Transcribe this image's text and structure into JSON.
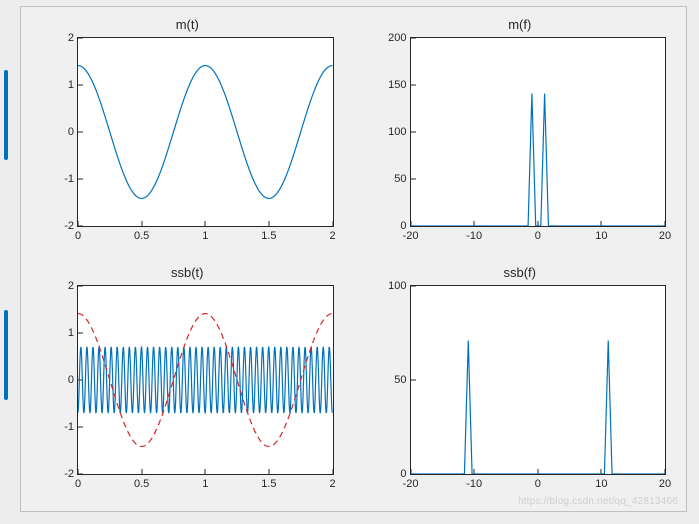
{
  "figure": {
    "background_color": "#f0f0f0",
    "panel_background": "#ffffff",
    "axis_color": "#262626",
    "tick_fontsize": 11,
    "title_fontsize": 13,
    "title_color": "#262626",
    "line_color_primary": "#0072bd",
    "line_color_secondary": "#d62728",
    "secondary_dash": "6,4",
    "line_width": 1.2
  },
  "panels": [
    {
      "id": "mt",
      "title": "m(t)",
      "xlim": [
        0,
        2
      ],
      "ylim": [
        -2,
        2
      ],
      "xticks": [
        0,
        0.5,
        1,
        1.5,
        2
      ],
      "yticks": [
        -2,
        -1,
        0,
        1,
        2
      ],
      "series": [
        {
          "kind": "sine",
          "amp": 1.414,
          "freq_hz": 1.0,
          "phase_deg": 90,
          "color_ref": "line_color_primary",
          "dash": null
        }
      ]
    },
    {
      "id": "mf",
      "title": "m(f)",
      "xlim": [
        -20,
        20
      ],
      "ylim": [
        0,
        200
      ],
      "xticks": [
        -20,
        -10,
        0,
        10,
        20
      ],
      "yticks": [
        0,
        50,
        100,
        150,
        200
      ],
      "series": [
        {
          "kind": "spikes",
          "baseline": 0,
          "spikes": [
            {
              "x": -1.0,
              "y": 141,
              "half_width": 0.6
            },
            {
              "x": 1.0,
              "y": 141,
              "half_width": 0.6
            }
          ],
          "color_ref": "line_color_primary",
          "dash": null
        }
      ]
    },
    {
      "id": "ssbt",
      "title": "ssb(t)",
      "xlim": [
        0,
        2
      ],
      "ylim": [
        -2,
        2
      ],
      "xticks": [
        0,
        0.5,
        1,
        1.5,
        2
      ],
      "yticks": [
        -2,
        -1,
        0,
        1,
        2
      ],
      "series": [
        {
          "kind": "sine",
          "amp": 0.707,
          "freq_hz": 21.0,
          "phase_deg": -80,
          "color_ref": "line_color_primary",
          "dash": null
        },
        {
          "kind": "sine",
          "amp": 1.414,
          "freq_hz": 1.0,
          "phase_deg": 90,
          "color_ref": "line_color_secondary",
          "dash": "secondary_dash"
        }
      ]
    },
    {
      "id": "ssbf",
      "title": "ssb(f)",
      "xlim": [
        -20,
        20
      ],
      "ylim": [
        0,
        100
      ],
      "xticks": [
        -20,
        -10,
        0,
        10,
        20
      ],
      "yticks": [
        0,
        50,
        100
      ],
      "series": [
        {
          "kind": "spikes",
          "baseline": 0,
          "spikes": [
            {
              "x": -11.0,
              "y": 71,
              "half_width": 0.6
            },
            {
              "x": 11.0,
              "y": 71,
              "half_width": 0.6
            }
          ],
          "color_ref": "line_color_primary",
          "dash": null
        }
      ]
    }
  ],
  "watermark": "https://blog.csdn.net/qq_42813466"
}
